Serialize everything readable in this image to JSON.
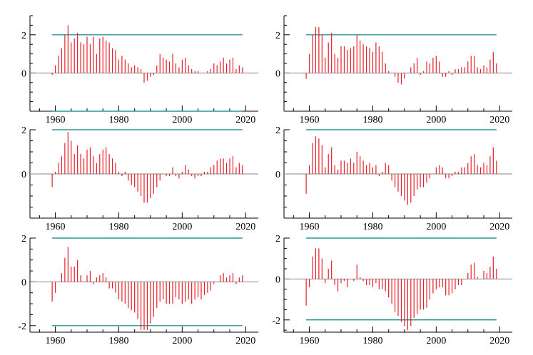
{
  "chart_data": [
    {
      "type": "bar",
      "x": [
        1959,
        1960,
        1961,
        1962,
        1963,
        1964,
        1965,
        1966,
        1967,
        1968,
        1969,
        1970,
        1971,
        1972,
        1973,
        1974,
        1975,
        1976,
        1977,
        1978,
        1979,
        1980,
        1981,
        1982,
        1983,
        1984,
        1985,
        1986,
        1987,
        1988,
        1989,
        1990,
        1991,
        1992,
        1993,
        1994,
        1995,
        1996,
        1997,
        1998,
        1999,
        2000,
        2001,
        2002,
        2003,
        2004,
        2005,
        2006,
        2007,
        2008,
        2009,
        2010,
        2011,
        2012,
        2013,
        2014,
        2015,
        2016,
        2017,
        2018,
        2019
      ],
      "values": [
        -0.1,
        0.4,
        0.9,
        1.3,
        2.0,
        2.5,
        1.6,
        1.8,
        2.1,
        1.6,
        1.5,
        1.9,
        1.5,
        1.9,
        1.0,
        1.8,
        1.9,
        1.7,
        1.6,
        1.3,
        1.2,
        0.7,
        0.9,
        0.7,
        0.5,
        0.3,
        0.4,
        0.3,
        0.2,
        -0.5,
        -0.4,
        -0.2,
        -0.1,
        0.4,
        1.0,
        0.8,
        0.7,
        0.6,
        1.0,
        0.5,
        0.3,
        0.7,
        0.8,
        0.4,
        0.2,
        0.1,
        0.1,
        0.0,
        0.0,
        0.1,
        0.2,
        0.5,
        0.4,
        0.6,
        0.8,
        0.5,
        0.7,
        0.8,
        0.2,
        0.4,
        0.3
      ],
      "xlim": [
        1952,
        2024
      ],
      "ylim": [
        -2,
        3
      ],
      "xticks": [
        1960,
        1980,
        2000,
        2020
      ],
      "yticks": [
        0,
        2
      ],
      "hlines": [
        2,
        -2
      ],
      "colors": {
        "bars": "#e8202a",
        "bounds": "#008080",
        "zero": "#888888"
      }
    },
    {
      "type": "bar",
      "x": [
        1959,
        1960,
        1961,
        1962,
        1963,
        1964,
        1965,
        1966,
        1967,
        1968,
        1969,
        1970,
        1971,
        1972,
        1973,
        1974,
        1975,
        1976,
        1977,
        1978,
        1979,
        1980,
        1981,
        1982,
        1983,
        1984,
        1985,
        1986,
        1987,
        1988,
        1989,
        1990,
        1991,
        1992,
        1993,
        1994,
        1995,
        1996,
        1997,
        1998,
        1999,
        2000,
        2001,
        2002,
        2003,
        2004,
        2005,
        2006,
        2007,
        2008,
        2009,
        2010,
        2011,
        2012,
        2013,
        2014,
        2015,
        2016,
        2017,
        2018,
        2019
      ],
      "values": [
        -0.3,
        1.0,
        2.0,
        2.4,
        2.4,
        2.0,
        0.8,
        1.6,
        2.1,
        1.0,
        0.8,
        1.4,
        1.4,
        1.2,
        1.3,
        1.4,
        2.0,
        1.7,
        1.5,
        1.4,
        1.3,
        1.1,
        1.6,
        1.4,
        1.1,
        0.5,
        0.1,
        0.0,
        -0.2,
        -0.5,
        -0.6,
        -0.3,
        0.0,
        0.3,
        0.5,
        0.8,
        -0.1,
        0.1,
        0.6,
        0.5,
        0.8,
        0.9,
        0.6,
        -0.2,
        -0.2,
        0.1,
        -0.1,
        0.2,
        0.2,
        0.3,
        0.3,
        0.6,
        0.9,
        0.9,
        0.3,
        0.2,
        0.4,
        0.3,
        0.7,
        1.1,
        0.5
      ],
      "xlim": [
        1952,
        2024
      ],
      "ylim": [
        -2,
        3
      ],
      "xticks": [
        1960,
        1980,
        2000,
        2020
      ],
      "yticks": [
        0,
        2
      ],
      "hlines": [
        2
      ],
      "colors": {
        "bars": "#e8202a",
        "bounds": "#008080",
        "zero": "#888888"
      }
    },
    {
      "type": "bar",
      "x": [
        1959,
        1960,
        1961,
        1962,
        1963,
        1964,
        1965,
        1966,
        1967,
        1968,
        1969,
        1970,
        1971,
        1972,
        1973,
        1974,
        1975,
        1976,
        1977,
        1978,
        1979,
        1980,
        1981,
        1982,
        1983,
        1984,
        1985,
        1986,
        1987,
        1988,
        1989,
        1990,
        1991,
        1992,
        1993,
        1994,
        1995,
        1996,
        1997,
        1998,
        1999,
        2000,
        2001,
        2002,
        2003,
        2004,
        2005,
        2006,
        2007,
        2008,
        2009,
        2010,
        2011,
        2012,
        2013,
        2014,
        2015,
        2016,
        2017,
        2018,
        2019
      ],
      "values": [
        -0.6,
        0.1,
        0.5,
        0.8,
        1.4,
        1.9,
        1.5,
        0.9,
        1.3,
        0.9,
        0.7,
        1.1,
        1.2,
        0.8,
        0.5,
        0.9,
        1.1,
        1.2,
        0.9,
        0.7,
        0.5,
        0.1,
        -0.1,
        0.1,
        -0.3,
        -0.5,
        -0.6,
        -0.8,
        -1.0,
        -1.3,
        -1.3,
        -1.1,
        -0.9,
        -0.6,
        -0.3,
        0.0,
        -0.1,
        -0.1,
        0.3,
        -0.1,
        -0.2,
        0.1,
        0.4,
        0.2,
        -0.1,
        -0.2,
        -0.1,
        -0.1,
        0.1,
        0.1,
        0.3,
        0.4,
        0.6,
        0.7,
        0.7,
        0.5,
        0.7,
        0.8,
        0.3,
        0.5,
        0.4
      ],
      "xlim": [
        1952,
        2024
      ],
      "ylim": [
        -2,
        2
      ],
      "xticks": [
        1960,
        1980,
        2000,
        2020
      ],
      "yticks": [
        0,
        2
      ],
      "hlines": [
        2
      ],
      "colors": {
        "bars": "#e8202a",
        "bounds": "#008080",
        "zero": "#888888"
      }
    },
    {
      "type": "bar",
      "x": [
        1959,
        1960,
        1961,
        1962,
        1963,
        1964,
        1965,
        1966,
        1967,
        1968,
        1969,
        1970,
        1971,
        1972,
        1973,
        1974,
        1975,
        1976,
        1977,
        1978,
        1979,
        1980,
        1981,
        1982,
        1983,
        1984,
        1985,
        1986,
        1987,
        1988,
        1989,
        1990,
        1991,
        1992,
        1993,
        1994,
        1995,
        1996,
        1997,
        1998,
        1999,
        2000,
        2001,
        2002,
        2003,
        2004,
        2005,
        2006,
        2007,
        2008,
        2009,
        2010,
        2011,
        2012,
        2013,
        2014,
        2015,
        2016,
        2017,
        2018,
        2019
      ],
      "values": [
        -0.9,
        0.4,
        1.4,
        1.7,
        1.6,
        1.3,
        0.3,
        0.9,
        1.2,
        0.4,
        0.2,
        0.6,
        0.6,
        0.5,
        0.7,
        0.5,
        1.0,
        0.8,
        0.6,
        0.4,
        0.5,
        0.3,
        0.4,
        -0.1,
        0.1,
        0.5,
        0.4,
        -0.3,
        -0.6,
        -0.8,
        -1.0,
        -1.2,
        -1.4,
        -1.3,
        -1.0,
        -0.7,
        -0.6,
        -0.6,
        -0.4,
        -0.2,
        0.0,
        0.3,
        0.4,
        0.3,
        -0.2,
        -0.2,
        -0.1,
        0.1,
        0.1,
        0.3,
        0.3,
        0.5,
        0.8,
        0.9,
        0.4,
        0.3,
        0.5,
        0.4,
        0.8,
        1.2,
        0.6
      ],
      "xlim": [
        1952,
        2024
      ],
      "ylim": [
        -2,
        2
      ],
      "xticks": [
        1960,
        1980,
        2000,
        2020
      ],
      "yticks": [
        0,
        2
      ],
      "hlines": [
        2
      ],
      "colors": {
        "bars": "#e8202a",
        "bounds": "#008080",
        "zero": "#888888"
      }
    },
    {
      "type": "bar",
      "x": [
        1959,
        1960,
        1961,
        1962,
        1963,
        1964,
        1965,
        1966,
        1967,
        1968,
        1969,
        1970,
        1971,
        1972,
        1973,
        1974,
        1975,
        1976,
        1977,
        1978,
        1979,
        1980,
        1981,
        1982,
        1983,
        1984,
        1985,
        1986,
        1987,
        1988,
        1989,
        1990,
        1991,
        1992,
        1993,
        1994,
        1995,
        1996,
        1997,
        1998,
        1999,
        2000,
        2001,
        2002,
        2003,
        2004,
        2005,
        2006,
        2007,
        2008,
        2009,
        2010,
        2011,
        2012,
        2013,
        2014,
        2015,
        2016,
        2017,
        2018,
        2019
      ],
      "values": [
        -0.9,
        -0.5,
        0.0,
        0.4,
        1.1,
        1.6,
        0.7,
        0.7,
        1.0,
        0.3,
        0.0,
        0.3,
        0.5,
        -0.1,
        0.2,
        0.3,
        0.4,
        0.2,
        -0.3,
        -0.3,
        -0.5,
        -0.8,
        -0.9,
        -1.0,
        -1.2,
        -1.3,
        -1.4,
        -1.7,
        -2.2,
        -2.2,
        -2.2,
        -1.9,
        -1.6,
        -1.2,
        -0.9,
        -0.8,
        -1.0,
        -1.0,
        -1.0,
        -0.7,
        -0.8,
        -1.0,
        -0.9,
        -0.8,
        -1.0,
        -0.8,
        -0.7,
        -0.8,
        -0.6,
        -0.5,
        -0.4,
        -0.1,
        0.0,
        0.3,
        0.4,
        0.2,
        0.3,
        0.4,
        -0.1,
        0.2,
        0.3
      ],
      "xlim": [
        1952,
        2024
      ],
      "ylim": [
        -2.3,
        2
      ],
      "xticks": [
        1960,
        1980,
        2000,
        2020
      ],
      "yticks": [
        -2,
        0,
        2
      ],
      "hlines": [
        2,
        -2
      ],
      "colors": {
        "bars": "#e8202a",
        "bounds": "#008080",
        "zero": "#888888"
      }
    },
    {
      "type": "bar",
      "x": [
        1959,
        1960,
        1961,
        1962,
        1963,
        1964,
        1965,
        1966,
        1967,
        1968,
        1969,
        1970,
        1971,
        1972,
        1973,
        1974,
        1975,
        1976,
        1977,
        1978,
        1979,
        1980,
        1981,
        1982,
        1983,
        1984,
        1985,
        1986,
        1987,
        1988,
        1989,
        1990,
        1991,
        1992,
        1993,
        1994,
        1995,
        1996,
        1997,
        1998,
        1999,
        2000,
        2001,
        2002,
        2003,
        2004,
        2005,
        2006,
        2007,
        2008,
        2009,
        2010,
        2011,
        2012,
        2013,
        2014,
        2015,
        2016,
        2017,
        2018,
        2019
      ],
      "values": [
        -1.3,
        -0.4,
        1.1,
        1.5,
        1.5,
        1.0,
        -0.2,
        0.5,
        0.9,
        -0.3,
        -0.6,
        -0.2,
        -0.1,
        -0.4,
        0.0,
        -0.1,
        0.7,
        0.1,
        -0.1,
        -0.3,
        -0.3,
        -0.4,
        -0.2,
        -0.5,
        -0.5,
        -0.6,
        -0.9,
        -1.2,
        -1.6,
        -1.8,
        -2.1,
        -2.3,
        -2.5,
        -2.3,
        -1.9,
        -1.7,
        -1.5,
        -1.5,
        -1.4,
        -1.0,
        -0.7,
        -0.5,
        -0.4,
        -0.4,
        -0.8,
        -0.8,
        -0.7,
        -0.5,
        -0.3,
        -0.3,
        0.0,
        0.3,
        0.7,
        0.8,
        0.1,
        0.0,
        0.4,
        0.3,
        0.6,
        1.1,
        0.5
      ],
      "xlim": [
        1952,
        2024
      ],
      "ylim": [
        -2.6,
        2
      ],
      "xticks": [
        1960,
        1980,
        2000,
        2020
      ],
      "yticks": [
        -2,
        0,
        2
      ],
      "hlines": [
        2,
        -2
      ],
      "colors": {
        "bars": "#e8202a",
        "bounds": "#008080",
        "zero": "#888888"
      }
    }
  ]
}
